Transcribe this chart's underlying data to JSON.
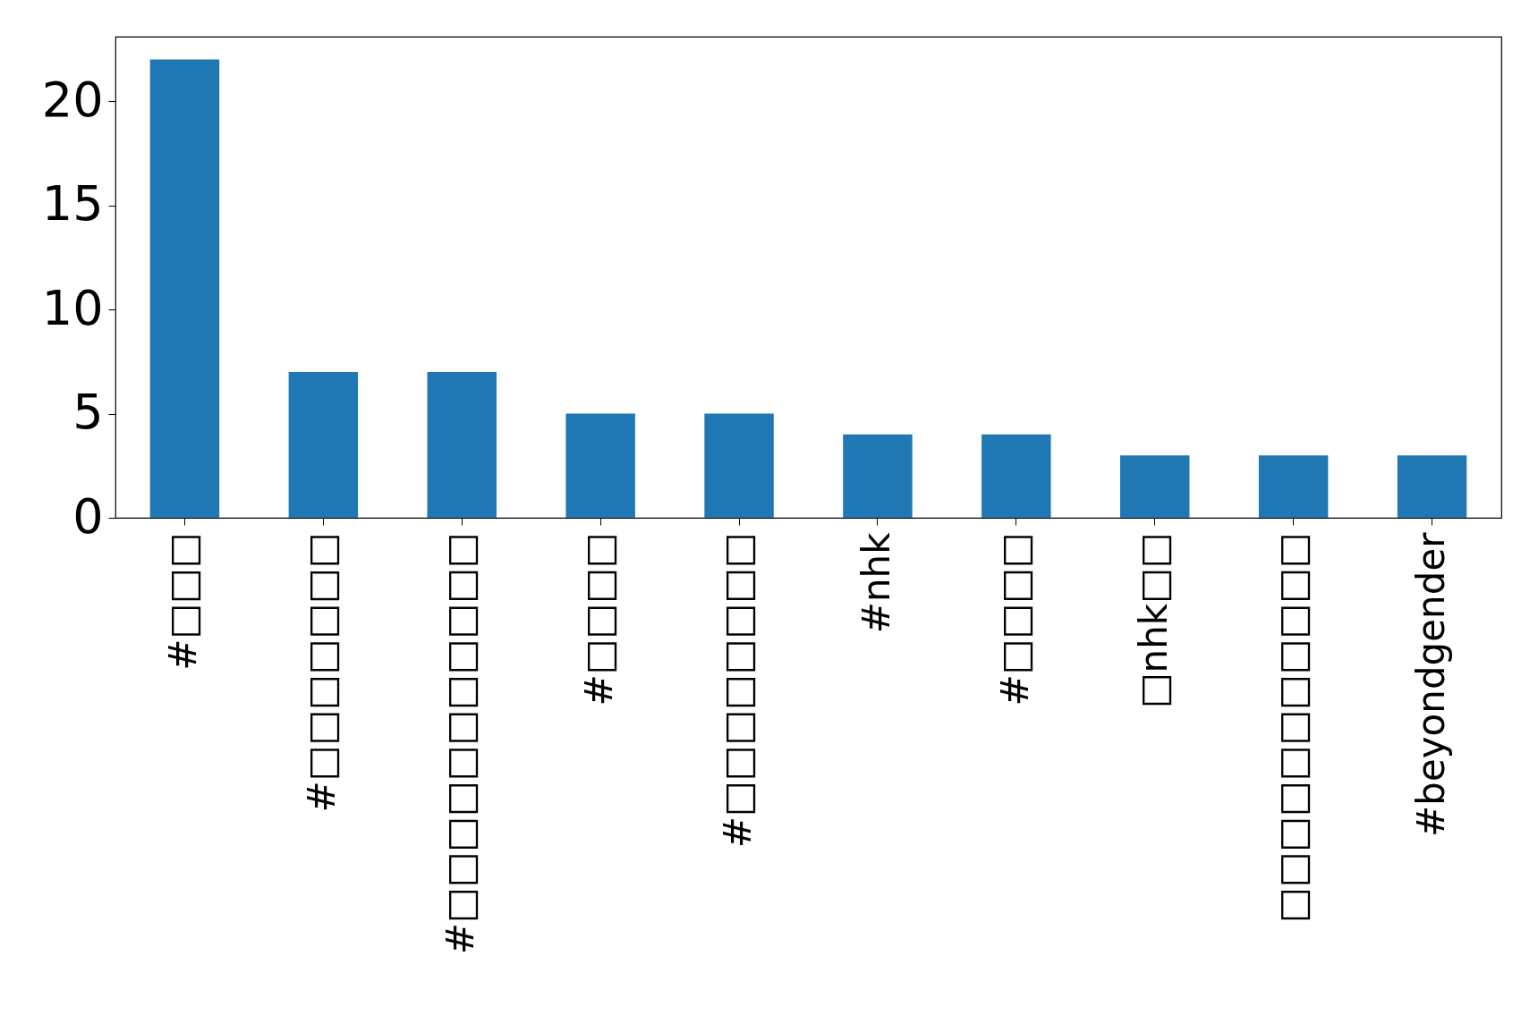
{
  "chart_data": {
    "type": "bar",
    "categories": [
      "#□□□",
      "#□□□□□□□",
      "#□□□□□□□□□□□",
      "#□□□□",
      "#□□□□□□□□",
      "#nhk",
      "#□□□□",
      "□nhk□□",
      "□□□□□□□□□□□",
      "#beyondgender"
    ],
    "values": [
      22,
      7,
      7,
      5,
      5,
      4,
      4,
      3,
      3,
      3
    ],
    "color": "#1f77b4",
    "ylim": [
      0,
      23.1
    ],
    "yticks": [
      0,
      5,
      10,
      15,
      20
    ],
    "grid": false
  }
}
